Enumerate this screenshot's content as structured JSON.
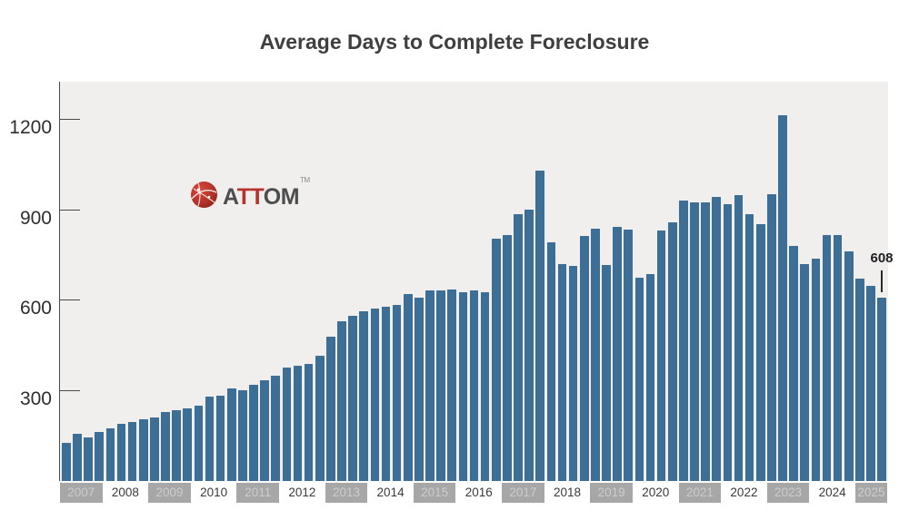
{
  "title": "Average Days to Complete Foreclosure",
  "logo": {
    "part_a": "A",
    "part_tt": "TT",
    "part_om": "OM",
    "trademark": "TM",
    "red": "#b5332a",
    "gray": "#4d4d4d"
  },
  "annotation": {
    "label": "608"
  },
  "colors": {
    "bar": "#3d6e96",
    "plot_background": "#f0efee",
    "axis": "#4b4b4b",
    "title_text": "#3f3f3f",
    "chip_background": "#a7a7a7",
    "chip_text": "#cdcdcd",
    "year_text": "#3a3a3a"
  },
  "chart_data": {
    "type": "bar",
    "title": "Average Days to Complete Foreclosure",
    "xlabel": "",
    "ylabel": "",
    "frequency": "quarterly",
    "start": "2007 Q1",
    "end": "2025 Q3",
    "y_ticks": [
      1200,
      900,
      600,
      300
    ],
    "ylim": [
      0,
      1323
    ],
    "grid": false,
    "legend": "none",
    "last_point_label": "608",
    "years": [
      {
        "label": "2007",
        "chip": true,
        "quarters": 4
      },
      {
        "label": "2008",
        "chip": false,
        "quarters": 4
      },
      {
        "label": "2009",
        "chip": true,
        "quarters": 4
      },
      {
        "label": "2010",
        "chip": false,
        "quarters": 4
      },
      {
        "label": "2011",
        "chip": true,
        "quarters": 4
      },
      {
        "label": "2012",
        "chip": false,
        "quarters": 4
      },
      {
        "label": "2013",
        "chip": true,
        "quarters": 4
      },
      {
        "label": "2014",
        "chip": false,
        "quarters": 4
      },
      {
        "label": "2015",
        "chip": true,
        "quarters": 4
      },
      {
        "label": "2016",
        "chip": false,
        "quarters": 4
      },
      {
        "label": "2017",
        "chip": true,
        "quarters": 4
      },
      {
        "label": "2018",
        "chip": false,
        "quarters": 4
      },
      {
        "label": "2019",
        "chip": true,
        "quarters": 4
      },
      {
        "label": "2020",
        "chip": false,
        "quarters": 4
      },
      {
        "label": "2021",
        "chip": true,
        "quarters": 4
      },
      {
        "label": "2022",
        "chip": false,
        "quarters": 4
      },
      {
        "label": "2023",
        "chip": true,
        "quarters": 4
      },
      {
        "label": "2024",
        "chip": false,
        "quarters": 4
      },
      {
        "label": "2025",
        "chip": true,
        "quarters": 3
      }
    ],
    "values": [
      125,
      157,
      144,
      162,
      175,
      190,
      195,
      205,
      212,
      230,
      235,
      240,
      250,
      280,
      282,
      307,
      300,
      320,
      335,
      348,
      375,
      382,
      387,
      414,
      477,
      528,
      546,
      563,
      572,
      577,
      583,
      618,
      606,
      630,
      630,
      633,
      625,
      631,
      625,
      803,
      814,
      883,
      899,
      1027,
      791,
      720,
      713,
      811,
      835,
      716,
      841,
      834,
      673,
      685,
      830,
      857,
      930,
      922,
      924,
      941,
      917,
      948,
      885,
      852,
      950,
      1212,
      778,
      720,
      736,
      815,
      815,
      762,
      671,
      646,
      608
    ]
  }
}
